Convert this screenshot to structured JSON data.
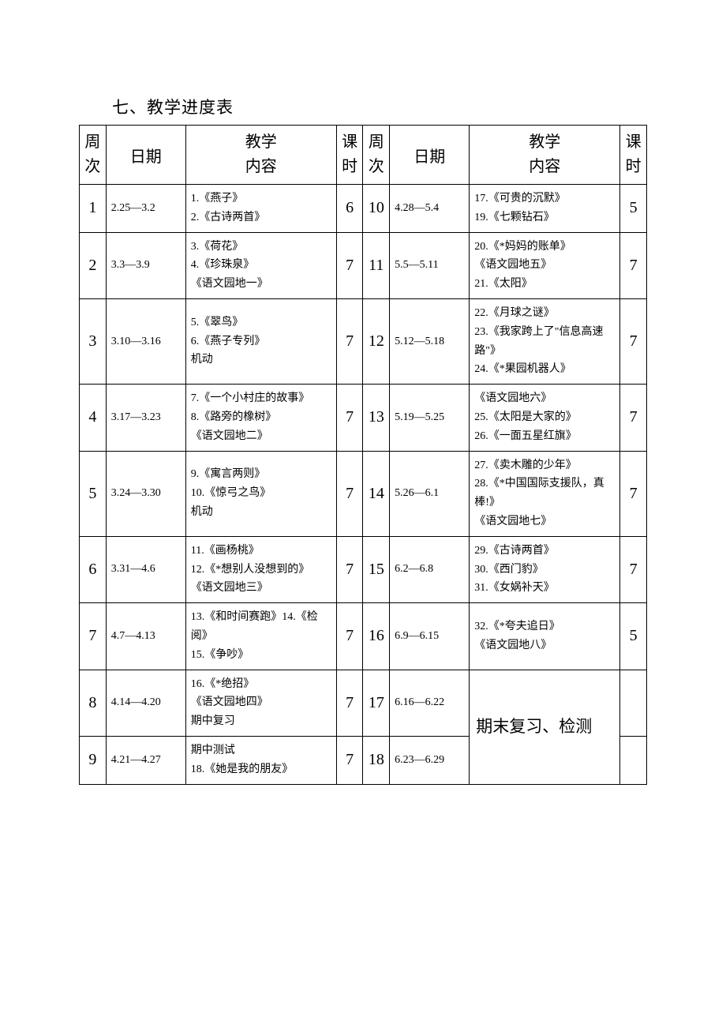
{
  "title": "七、教学进度表",
  "headers": {
    "week": "周次",
    "date": "日期",
    "content_l1": "教学",
    "content_l2": "内容",
    "hours": "课时"
  },
  "left": [
    {
      "week": "1",
      "date": "2.25—3.2",
      "content": "1.《燕子》\n2.《古诗两首》",
      "hours": "6"
    },
    {
      "week": "2",
      "date": "3.3—3.9",
      "content": "3.《荷花》\n4.《珍珠泉》\n《语文园地一》",
      "hours": "7"
    },
    {
      "week": "3",
      "date": "3.10—3.16",
      "content": "5.《翠鸟》\n6.《燕子专列》\n机动",
      "hours": "7"
    },
    {
      "week": "4",
      "date": "3.17—3.23",
      "content": "7.《一个小村庄的故事》\n8.《路旁的橡树》\n《语文园地二》",
      "hours": "7"
    },
    {
      "week": "5",
      "date": "3.24—3.30",
      "content": "9.《寓言两则》\n10.《惊弓之鸟》\n机动",
      "hours": "7"
    },
    {
      "week": "6",
      "date": "3.31—4.6",
      "content": "11.《画杨桃》\n12.《*想别人没想到的》\n《语文园地三》",
      "hours": "7"
    },
    {
      "week": "7",
      "date": "4.7—4.13",
      "content": "13.《和时间赛跑》14.《检阅》\n15.《争吵》",
      "hours": "7"
    },
    {
      "week": "8",
      "date": "4.14—4.20",
      "content": "16.《*绝招》\n《语文园地四》\n期中复习",
      "hours": "7"
    },
    {
      "week": "9",
      "date": "4.21—4.27",
      "content": "期中测试\n18.《她是我的朋友》",
      "hours": "7"
    }
  ],
  "right": [
    {
      "week": "10",
      "date": "4.28—5.4",
      "content": "17.《可贵的沉默》\n19.《七颗钻石》",
      "hours": "5"
    },
    {
      "week": "11",
      "date": "5.5—5.11",
      "content": "20.《*妈妈的账单》\n《语文园地五》\n21.《太阳》",
      "hours": "7"
    },
    {
      "week": "12",
      "date": "5.12—5.18",
      "content": "22.《月球之谜》\n23.《我家跨上了\"信息高速路\"》\n24.《*果园机器人》",
      "hours": "7"
    },
    {
      "week": "13",
      "date": "5.19—5.25",
      "content": "《语文园地六》\n25.《太阳是大家的》\n26.《一面五星红旗》",
      "hours": "7"
    },
    {
      "week": "14",
      "date": "5.26—6.1",
      "content": "27.《卖木雕的少年》\n28.《*中国国际支援队，真棒!》\n《语文园地七》",
      "hours": "7"
    },
    {
      "week": "15",
      "date": "6.2—6.8",
      "content": "29.《古诗两首》\n30.《西门豹》\n31.《女娲补天》",
      "hours": "7"
    },
    {
      "week": "16",
      "date": "6.9—6.15",
      "content": "32.《*夸夫追日》\n《语文园地八》",
      "hours": "5"
    }
  ],
  "right_tail": {
    "row17": {
      "week": "17",
      "date": "6.16—6.22",
      "hours": ""
    },
    "row18": {
      "week": "18",
      "date": "6.23—6.29",
      "hours": ""
    },
    "merged_content": "期末复习、检测"
  }
}
